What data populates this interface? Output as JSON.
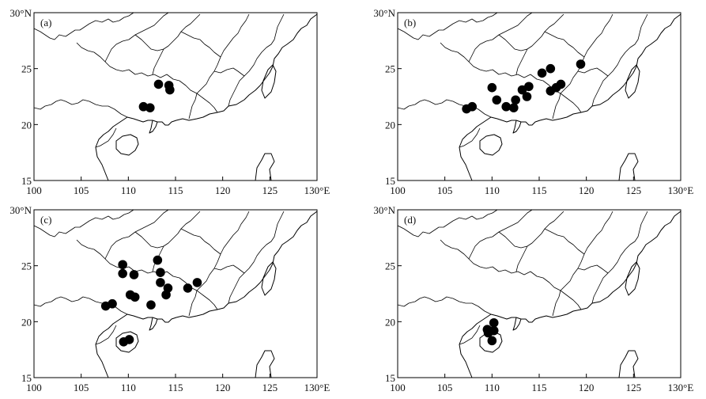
{
  "map": {
    "lon_range": [
      100,
      130
    ],
    "lat_range": [
      15,
      30
    ],
    "lon_ticks": [
      "100",
      "105",
      "110",
      "115",
      "120",
      "125",
      "130°E"
    ],
    "lat_ticks": [
      "15",
      "20",
      "25",
      "30°N"
    ],
    "lon_values": [
      100,
      105,
      110,
      115,
      120,
      125,
      130
    ],
    "lat_values": [
      15,
      20,
      25,
      30
    ],
    "marker_color": "#000000"
  },
  "panels": [
    {
      "label": "(a)",
      "points": [
        {
          "lon": 111.6,
          "lat": 21.6
        },
        {
          "lon": 112.3,
          "lat": 21.5
        },
        {
          "lon": 113.2,
          "lat": 23.6
        },
        {
          "lon": 114.3,
          "lat": 23.5
        },
        {
          "lon": 114.4,
          "lat": 23.1
        }
      ]
    },
    {
      "label": "(b)",
      "points": [
        {
          "lon": 107.3,
          "lat": 21.4
        },
        {
          "lon": 107.9,
          "lat": 21.6
        },
        {
          "lon": 110.0,
          "lat": 23.3
        },
        {
          "lon": 110.5,
          "lat": 22.2
        },
        {
          "lon": 111.5,
          "lat": 21.6
        },
        {
          "lon": 112.3,
          "lat": 21.5
        },
        {
          "lon": 112.5,
          "lat": 22.2
        },
        {
          "lon": 113.2,
          "lat": 23.1
        },
        {
          "lon": 113.7,
          "lat": 22.5
        },
        {
          "lon": 113.9,
          "lat": 23.4
        },
        {
          "lon": 115.3,
          "lat": 24.6
        },
        {
          "lon": 116.2,
          "lat": 25.0
        },
        {
          "lon": 116.2,
          "lat": 23.0
        },
        {
          "lon": 116.8,
          "lat": 23.3
        },
        {
          "lon": 117.3,
          "lat": 23.6
        },
        {
          "lon": 119.4,
          "lat": 25.4
        }
      ]
    },
    {
      "label": "(c)",
      "points": [
        {
          "lon": 107.6,
          "lat": 21.4
        },
        {
          "lon": 108.3,
          "lat": 21.6
        },
        {
          "lon": 109.4,
          "lat": 25.1
        },
        {
          "lon": 109.4,
          "lat": 24.3
        },
        {
          "lon": 110.6,
          "lat": 24.2
        },
        {
          "lon": 110.2,
          "lat": 22.4
        },
        {
          "lon": 110.7,
          "lat": 22.2
        },
        {
          "lon": 109.5,
          "lat": 18.2
        },
        {
          "lon": 110.1,
          "lat": 18.4
        },
        {
          "lon": 112.4,
          "lat": 21.5
        },
        {
          "lon": 113.1,
          "lat": 25.5
        },
        {
          "lon": 113.4,
          "lat": 24.4
        },
        {
          "lon": 113.4,
          "lat": 23.5
        },
        {
          "lon": 114.2,
          "lat": 23.0
        },
        {
          "lon": 114.0,
          "lat": 22.4
        },
        {
          "lon": 116.3,
          "lat": 23.0
        },
        {
          "lon": 117.3,
          "lat": 23.5
        }
      ]
    },
    {
      "label": "(d)",
      "points": [
        {
          "lon": 109.5,
          "lat": 19.3
        },
        {
          "lon": 109.6,
          "lat": 19.0
        },
        {
          "lon": 110.2,
          "lat": 19.9
        },
        {
          "lon": 110.2,
          "lat": 19.2
        },
        {
          "lon": 110.0,
          "lat": 18.3
        }
      ]
    }
  ]
}
